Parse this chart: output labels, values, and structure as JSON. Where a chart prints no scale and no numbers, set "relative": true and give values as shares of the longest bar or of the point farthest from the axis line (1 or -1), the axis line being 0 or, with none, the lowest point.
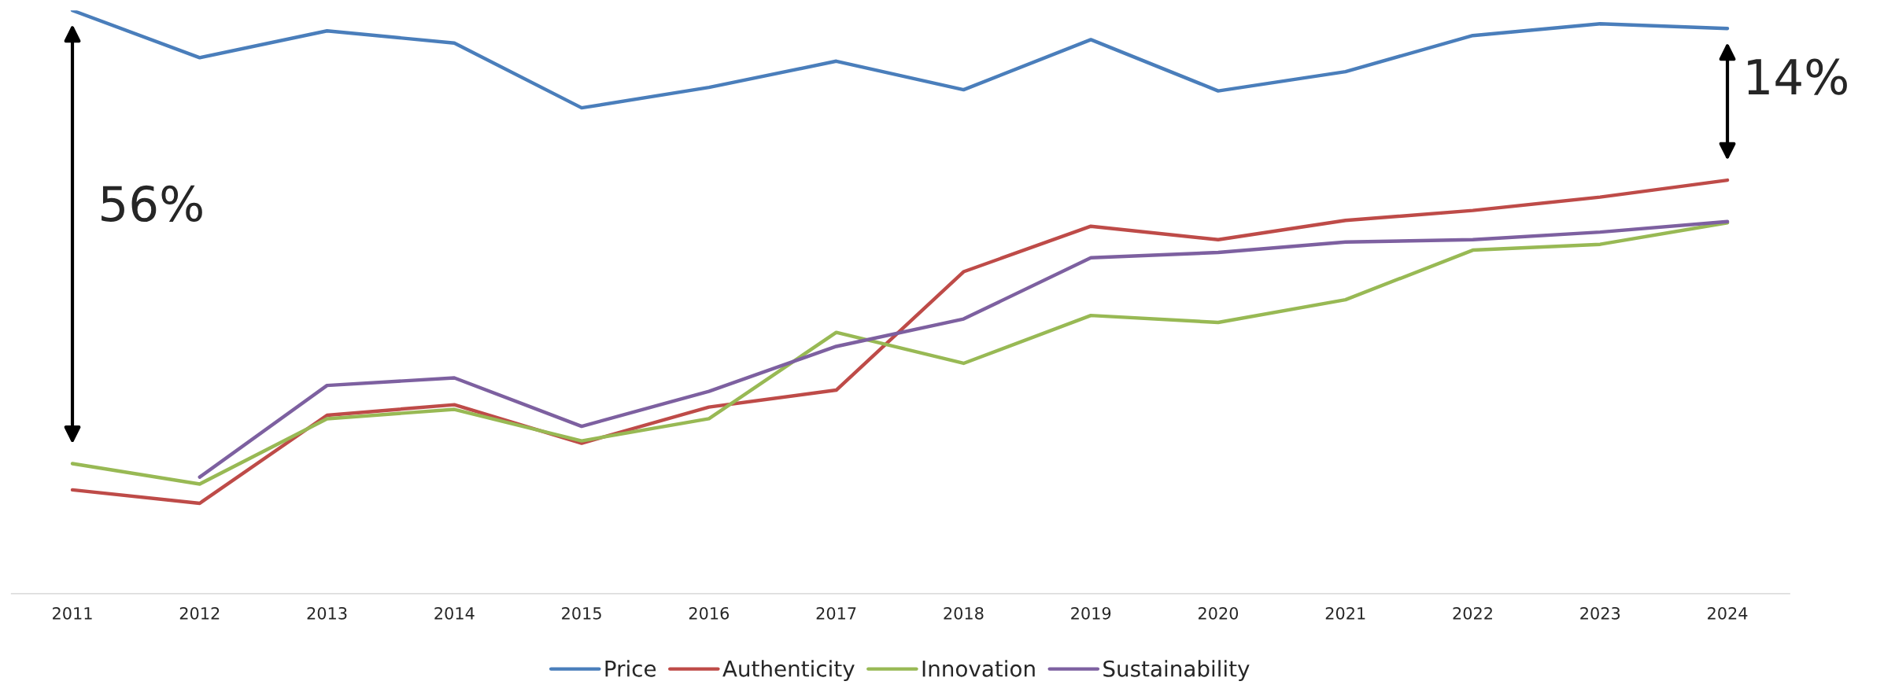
{
  "chart_data": {
    "type": "line",
    "relative": true,
    "categories": [
      "2011",
      "2012",
      "2013",
      "2014",
      "2015",
      "2016",
      "2017",
      "2018",
      "2019",
      "2020",
      "2021",
      "2022",
      "2023",
      "2024"
    ],
    "series": [
      {
        "name": "Price",
        "color": "#4a7ebb",
        "values": [
          1.0,
          0.919,
          0.965,
          0.944,
          0.833,
          0.868,
          0.913,
          0.864,
          0.95,
          0.862,
          0.895,
          0.957,
          0.977,
          0.969
        ]
      },
      {
        "name": "Authenticity",
        "color": "#be4b48",
        "values": [
          0.178,
          0.155,
          0.306,
          0.324,
          0.258,
          0.32,
          0.349,
          0.552,
          0.63,
          0.607,
          0.64,
          0.657,
          0.68,
          0.709
        ]
      },
      {
        "name": "Innovation",
        "color": "#98b954",
        "values": [
          0.223,
          0.188,
          0.3,
          0.316,
          0.262,
          0.3,
          0.448,
          0.395,
          0.477,
          0.465,
          0.504,
          0.589,
          0.599,
          0.636
        ]
      },
      {
        "name": "Sustainability",
        "color": "#7d60a0",
        "values": [
          null,
          0.2,
          0.357,
          0.37,
          0.287,
          0.347,
          0.424,
          0.471,
          0.576,
          0.585,
          0.603,
          0.607,
          0.62,
          0.638
        ]
      }
    ],
    "annotations": [
      "56%",
      "14%"
    ],
    "legend": "bottom",
    "grid": false,
    "marker": "none",
    "line_style": "solid"
  }
}
